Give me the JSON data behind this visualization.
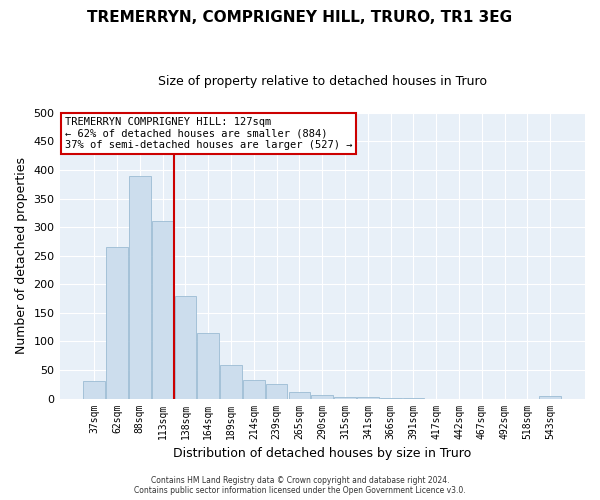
{
  "title": "TREMERRYN, COMPRIGNEY HILL, TRURO, TR1 3EG",
  "subtitle": "Size of property relative to detached houses in Truro",
  "xlabel": "Distribution of detached houses by size in Truro",
  "ylabel": "Number of detached properties",
  "bar_labels": [
    "37sqm",
    "62sqm",
    "88sqm",
    "113sqm",
    "138sqm",
    "164sqm",
    "189sqm",
    "214sqm",
    "239sqm",
    "265sqm",
    "290sqm",
    "315sqm",
    "341sqm",
    "366sqm",
    "391sqm",
    "417sqm",
    "442sqm",
    "467sqm",
    "492sqm",
    "518sqm",
    "543sqm"
  ],
  "bar_values": [
    30,
    265,
    390,
    310,
    180,
    115,
    58,
    33,
    25,
    12,
    6,
    3,
    2,
    1,
    1,
    0,
    0,
    0,
    0,
    0,
    4
  ],
  "bar_color": "#ccdded",
  "bar_edgecolor": "#9bbcd4",
  "vline_color": "#cc0000",
  "vline_pos": 3.5,
  "ylim": [
    0,
    500
  ],
  "yticks": [
    0,
    50,
    100,
    150,
    200,
    250,
    300,
    350,
    400,
    450,
    500
  ],
  "annotation_title": "TREMERRYN COMPRIGNEY HILL: 127sqm",
  "annotation_line1": "← 62% of detached houses are smaller (884)",
  "annotation_line2": "37% of semi-detached houses are larger (527) →",
  "annotation_box_facecolor": "#ffffff",
  "annotation_box_edgecolor": "#cc0000",
  "footer_line1": "Contains HM Land Registry data © Crown copyright and database right 2024.",
  "footer_line2": "Contains public sector information licensed under the Open Government Licence v3.0.",
  "bg_color": "#ffffff",
  "plot_bg_color": "#e8f0f8",
  "grid_color": "#ffffff",
  "title_fontsize": 11,
  "subtitle_fontsize": 9
}
